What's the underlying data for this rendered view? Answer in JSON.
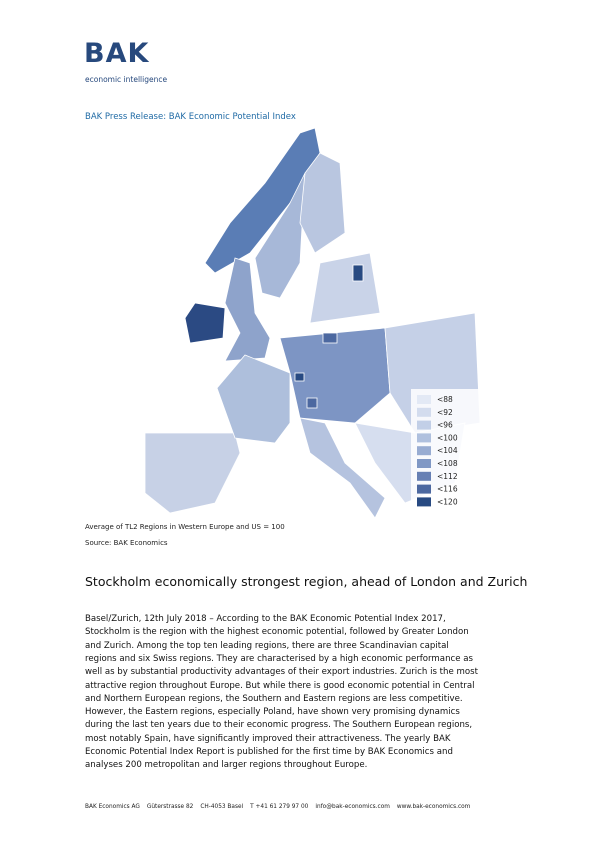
{
  "logo": {
    "name": "BAK",
    "tagline": "economic intelligence"
  },
  "header": {
    "title": "BAK Press Release: BAK Economic Potential Index"
  },
  "map": {
    "legend": [
      {
        "label": "<88",
        "color": "#e3e9f5"
      },
      {
        "label": "<92",
        "color": "#d3dcee"
      },
      {
        "label": "<96",
        "color": "#c2cfe7"
      },
      {
        "label": "<100",
        "color": "#afc0de"
      },
      {
        "label": "<104",
        "color": "#98acd2"
      },
      {
        "label": "<108",
        "color": "#8098c5"
      },
      {
        "label": "<112",
        "color": "#6780b4"
      },
      {
        "label": "<116",
        "color": "#4c68a0"
      },
      {
        "label": "<120",
        "color": "#284a82"
      }
    ]
  },
  "caption": {
    "note": "Average of TL2 Regions in Western Europe and US = 100",
    "source": "Source: BAK Economics"
  },
  "headline": "Stockholm economically strongest region, ahead of London and Zurich",
  "body": {
    "lines": [
      "Basel/Zurich, 12th July 2018 – According to the BAK Economic Potential Index 2017,",
      "Stockholm is the region with the highest economic potential, followed by Greater London",
      "and Zurich. Among the top ten leading regions, there are three Scandinavian capital",
      "regions and six Swiss regions. They are characterised by a high economic performance as",
      "well as by substantial productivity advantages of their export industries. Zurich is the most",
      "attractive region throughout Europe. But while there is good economic potential in Central",
      "and Northern European regions, the Southern and Eastern regions are less competitive.",
      "However, the Eastern regions, especially Poland, have shown very promising dynamics",
      "during the last ten years due to their economic progress. The Southern European regions,",
      "most notably Spain, have significantly improved their attractiveness. The yearly BAK",
      "Economic Potential Index Report is published for the first time by BAK Economics and",
      "analyses 200 metropolitan and larger regions throughout Europe."
    ]
  },
  "footer": {
    "parts": [
      "BAK Economics AG",
      "Güterstrasse 82",
      "CH-4053 Basel",
      "T +41 61 279 97 00",
      "info@bak-economics.com",
      "www.bak-economics.com"
    ]
  }
}
